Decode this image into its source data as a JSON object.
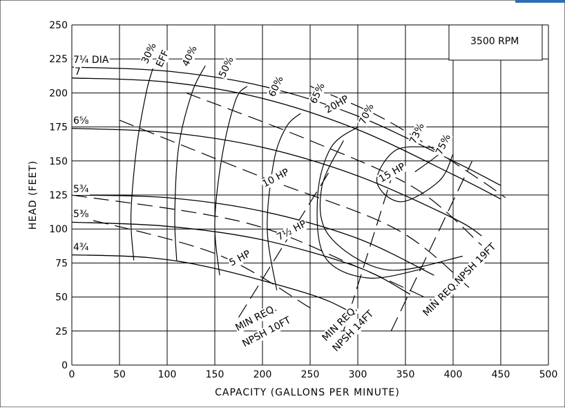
{
  "header_accent_color": "#2f6db5",
  "chart_data": {
    "type": "line",
    "rpm_label": "3500 RPM",
    "xlabel": "CAPACITY (GALLONS PER MINUTE)",
    "ylabel": "HEAD (FEET)",
    "xlim": [
      0,
      500
    ],
    "ylim": [
      0,
      250
    ],
    "xticks": [
      0,
      50,
      100,
      150,
      200,
      250,
      300,
      350,
      400,
      450,
      500
    ],
    "yticks": [
      0,
      25,
      50,
      75,
      100,
      125,
      150,
      175,
      200,
      225,
      250
    ],
    "grid": true,
    "head_curves": [
      {
        "name": "7¼ DIA",
        "points": [
          [
            0,
            219
          ],
          [
            100,
            216
          ],
          [
            200,
            205
          ],
          [
            300,
            183
          ],
          [
            400,
            150
          ],
          [
            450,
            132
          ]
        ]
      },
      {
        "name": "7",
        "points": [
          [
            0,
            211
          ],
          [
            100,
            208
          ],
          [
            200,
            196
          ],
          [
            300,
            173
          ],
          [
            400,
            140
          ],
          [
            450,
            122
          ]
        ]
      },
      {
        "name": "6⅝",
        "points": [
          [
            0,
            174
          ],
          [
            100,
            171
          ],
          [
            200,
            160
          ],
          [
            300,
            139
          ],
          [
            400,
            108
          ],
          [
            430,
            95
          ]
        ]
      },
      {
        "name": "5¾",
        "points": [
          [
            0,
            125
          ],
          [
            100,
            123
          ],
          [
            200,
            113
          ],
          [
            300,
            93
          ],
          [
            380,
            66
          ]
        ]
      },
      {
        "name": "5⅜",
        "points": [
          [
            0,
            105
          ],
          [
            100,
            102
          ],
          [
            200,
            92
          ],
          [
            300,
            72
          ],
          [
            355,
            52
          ]
        ]
      },
      {
        "name": "4¾",
        "points": [
          [
            0,
            81
          ],
          [
            80,
            79
          ],
          [
            150,
            71
          ],
          [
            250,
            52
          ],
          [
            290,
            40
          ]
        ]
      }
    ],
    "efficiency_curves": [
      {
        "name": "30%",
        "points": [
          [
            65,
            77
          ],
          [
            62,
            110
          ],
          [
            68,
            160
          ],
          [
            78,
            200
          ],
          [
            85,
            218
          ]
        ]
      },
      {
        "name": "40%",
        "points": [
          [
            110,
            77
          ],
          [
            108,
            110
          ],
          [
            112,
            160
          ],
          [
            126,
            200
          ],
          [
            140,
            220
          ]
        ]
      },
      {
        "name": "50%",
        "points": [
          [
            155,
            66
          ],
          [
            150,
            105
          ],
          [
            158,
            155
          ],
          [
            172,
            195
          ],
          [
            184,
            205
          ]
        ]
      },
      {
        "name": "60%",
        "points": [
          [
            215,
            55
          ],
          [
            205,
            100
          ],
          [
            212,
            150
          ],
          [
            225,
            175
          ],
          [
            240,
            185
          ]
        ]
      },
      {
        "name": "65%",
        "points": [
          [
            370,
            71
          ],
          [
            310,
            64
          ],
          [
            265,
            80
          ],
          [
            258,
            125
          ],
          [
            272,
            160
          ],
          [
            300,
            175
          ]
        ]
      },
      {
        "name": "70%",
        "points": [
          [
            410,
            80
          ],
          [
            330,
            70
          ],
          [
            270,
            95
          ],
          [
            262,
            130
          ],
          [
            285,
            165
          ]
        ]
      },
      {
        "name": "73%",
        "points": [
          [
            380,
            160
          ],
          [
            340,
            158
          ],
          [
            320,
            135
          ],
          [
            345,
            120
          ],
          [
            385,
            135
          ],
          [
            400,
            155
          ]
        ]
      },
      {
        "name": "75%",
        "points": [
          [
            360,
            142
          ],
          [
            385,
            155
          ],
          [
            385,
            160
          ]
        ]
      }
    ],
    "hp_lines": [
      {
        "name": "5 HP",
        "points": [
          [
            0,
            110
          ],
          [
            150,
            82
          ],
          [
            250,
            42
          ]
        ]
      },
      {
        "name": "7½ HP",
        "points": [
          [
            0,
            125
          ],
          [
            180,
            105
          ],
          [
            300,
            72
          ],
          [
            385,
            45
          ]
        ]
      },
      {
        "name": "10 HP",
        "points": [
          [
            50,
            180
          ],
          [
            200,
            138
          ],
          [
            340,
            100
          ],
          [
            420,
            55
          ]
        ]
      },
      {
        "name": "15 HP",
        "points": [
          [
            120,
            200
          ],
          [
            250,
            165
          ],
          [
            360,
            130
          ],
          [
            430,
            88
          ]
        ]
      },
      {
        "name": "20HP",
        "points": [
          [
            250,
            205
          ],
          [
            330,
            180
          ],
          [
            420,
            140
          ],
          [
            455,
            123
          ]
        ]
      }
    ],
    "npsh_lines": [
      {
        "name": "MIN REQ. NPSH 10FT",
        "points": [
          [
            175,
            35
          ],
          [
            270,
            142
          ]
        ]
      },
      {
        "name": "MIN REQ. NPSH 14FT",
        "points": [
          [
            285,
            25
          ],
          [
            340,
            148
          ]
        ]
      },
      {
        "name": "MIN REQ.NPSH 19FT",
        "points": [
          [
            335,
            25
          ],
          [
            420,
            150
          ]
        ]
      }
    ],
    "labels": {
      "dia_7_1_4": "7¼ DIA",
      "dia_7": "7",
      "dia_6_5_8": "6⅝",
      "dia_5_3_4": "5¾",
      "dia_5_3_8": "5⅜",
      "dia_4_3_4": "4¾",
      "eff_word": "EFF",
      "eff_30": "30%",
      "eff_40": "40%",
      "eff_50": "50%",
      "eff_60": "60%",
      "eff_65": "65%",
      "eff_70": "70%",
      "eff_73": "73%",
      "eff_75": "75%",
      "hp_5": "5 HP",
      "hp_7_5": "7½ HP",
      "hp_10": "10 HP",
      "hp_15": "15 HP",
      "hp_20": "20HP",
      "npsh10_a": "MIN REQ.",
      "npsh10_b": "NPSH 10FT",
      "npsh14_a": "MIN REQ.",
      "npsh14_b": "NPSH 14FT",
      "npsh19": "MIN REQ.NPSH 19FT"
    }
  }
}
